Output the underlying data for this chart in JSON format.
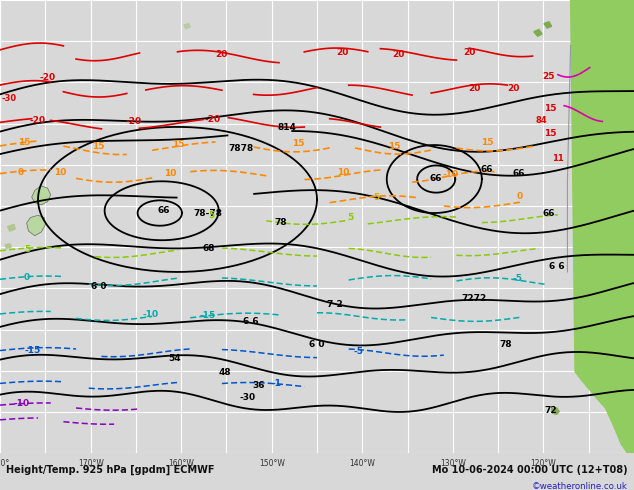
{
  "title_left": "Height/Temp. 925 hPa [gpdm] ECMWF",
  "title_right": "Mo 10-06-2024 00:00 UTC (12+T08)",
  "copyright": "©weatheronline.co.uk",
  "bg_color": "#d8d8d8",
  "map_bg": "#d8d8d8",
  "grid_color": "#ffffff",
  "land_nz": "#b8d8a0",
  "land_sa": "#90cc60",
  "land_sa_dark": "#70aa40",
  "bottom_bar_color": "#aaaaaa",
  "figsize": [
    6.34,
    4.9
  ],
  "dpi": 100,
  "c_black": "#000000",
  "c_red": "#dd0000",
  "c_orange": "#ff8800",
  "c_orange2": "#ddaa00",
  "c_cyan": "#00aaaa",
  "c_blue": "#0055cc",
  "c_purple": "#8800bb",
  "c_green": "#88cc00",
  "c_magenta": "#dd00aa",
  "c_gray": "#888888"
}
